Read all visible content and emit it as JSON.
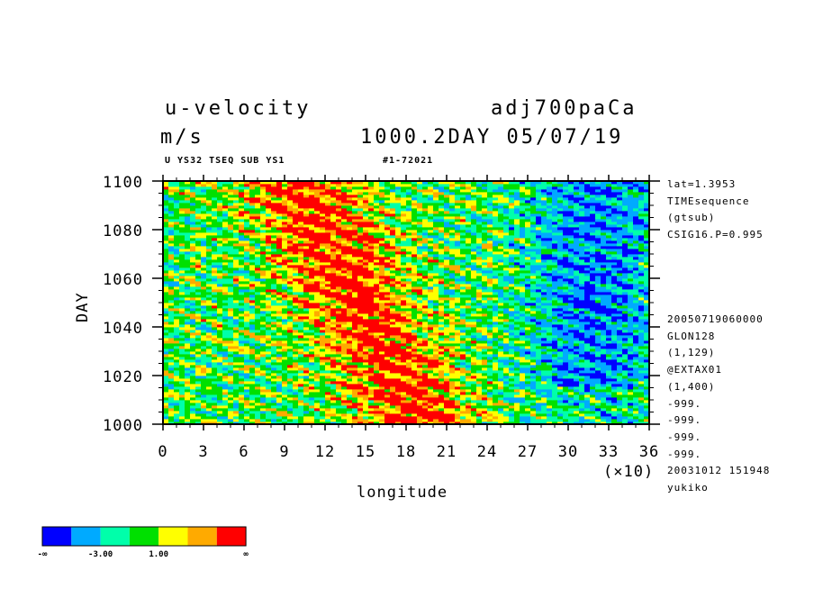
{
  "header": {
    "title": "u-velocity",
    "units": "m/s",
    "experiment": "adj700paCa",
    "time_label": "1000.2DAY 05/07/19",
    "sub_left": "U YS32 TSEQ SUB YS1",
    "sub_right": "#1-72021"
  },
  "side_info": {
    "lines_top": [
      "lat=1.3953",
      "TIMEsequence",
      "(gtsub)",
      "CSIG16.P=0.995"
    ],
    "lines_bottom": [
      "20050719060000",
      "GLON128",
      "(1,129)",
      "@EXTAX01",
      "(1,400)",
      "-999.",
      "-999.",
      "-999.",
      "-999.",
      "20031012 151948",
      "yukiko"
    ]
  },
  "colorbar": {
    "colors": [
      "#0000ff",
      "#00aaff",
      "#00ffaa",
      "#00e000",
      "#ffff00",
      "#ffaa00",
      "#ff0000"
    ],
    "labels": [
      "-∞",
      "-3.00",
      "1.00",
      "∞"
    ]
  },
  "chart_data": {
    "type": "heatmap",
    "title": "u-velocity",
    "xlabel": "longitude",
    "ylabel": "DAY",
    "x_multiplier": "(×10)",
    "xlim": [
      0,
      36
    ],
    "ylim": [
      1000,
      1100
    ],
    "x_ticks": [
      "0",
      "3",
      "6",
      "9",
      "12",
      "15",
      "18",
      "21",
      "24",
      "27",
      "30",
      "33",
      "36"
    ],
    "y_ticks": [
      "1000",
      "1020",
      "1040",
      "1060",
      "1080",
      "1100"
    ],
    "levels": [
      -3.0,
      1.0
    ],
    "pattern_description": "strongly positive values (red) concentrated near longitude 9-21 (x10), shifting westward with increasing day; negative values (blue) dominate longitude 24-36 (x10) around days 1020-1090"
  }
}
